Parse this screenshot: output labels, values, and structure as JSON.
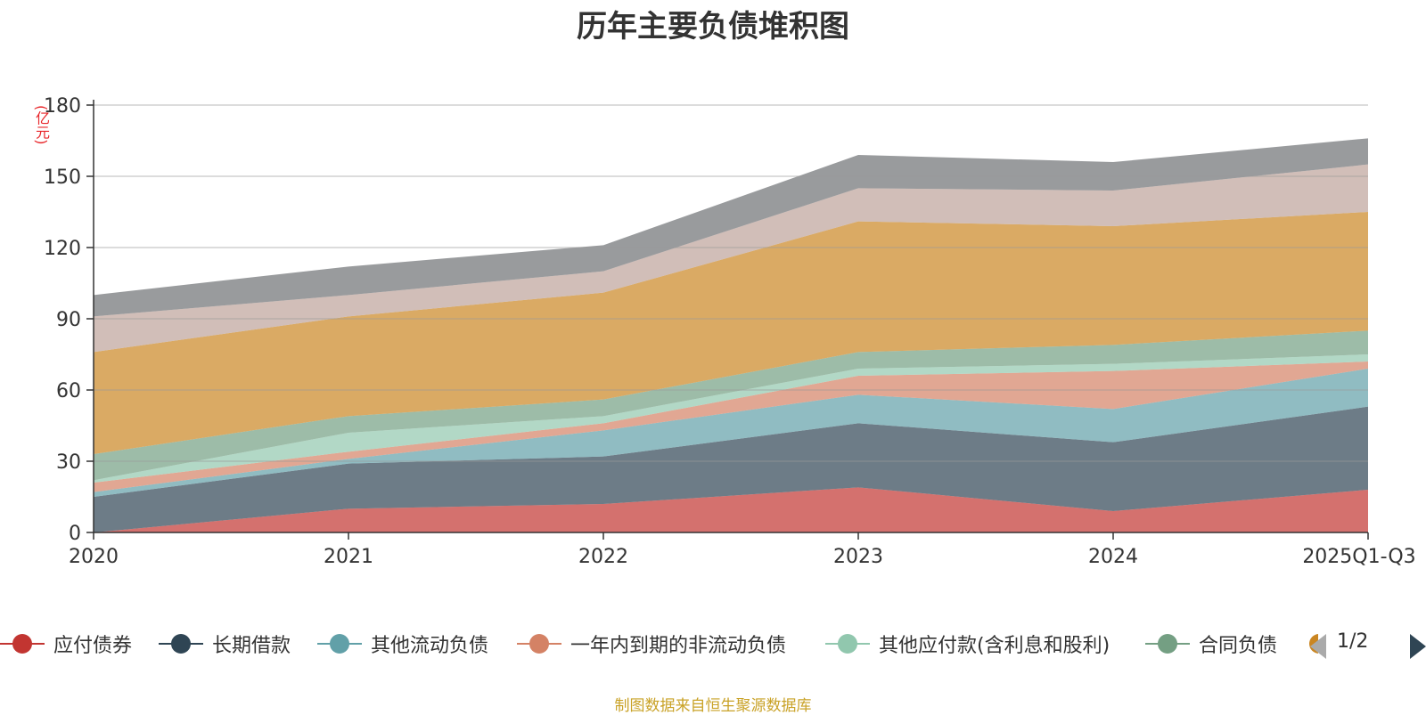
{
  "chart_data": {
    "type": "area",
    "stacked": true,
    "title": "历年主要负债堆积图",
    "ylabel": "(亿元)",
    "xlabel": "",
    "ylim": [
      0,
      180
    ],
    "yticks": [
      0,
      30,
      60,
      90,
      120,
      150,
      180
    ],
    "grid": true,
    "categories": [
      "2020",
      "2021",
      "2022",
      "2023",
      "2024",
      "2025Q1-Q3"
    ],
    "series": [
      {
        "name": "应付债券",
        "color": "#c23531",
        "values": [
          0,
          10,
          12,
          19,
          9,
          18
        ],
        "legend_visible": true
      },
      {
        "name": "长期借款",
        "color": "#2f4554",
        "values": [
          15,
          19,
          20,
          27,
          29,
          35
        ],
        "legend_visible": true
      },
      {
        "name": "其他流动负债",
        "color": "#61a0a8",
        "values": [
          2,
          2,
          11,
          12,
          14,
          16
        ],
        "legend_visible": true
      },
      {
        "name": "一年内到期的非流动负债",
        "color": "#d48265",
        "values": [
          4,
          3,
          3,
          8,
          16,
          3
        ],
        "legend_visible": true
      },
      {
        "name": "其他应付款(含利息和股利)",
        "color": "#91c7ae",
        "values": [
          1,
          8,
          3,
          3,
          3,
          3
        ],
        "legend_visible": true
      },
      {
        "name": "合同负债",
        "color": "#749f83",
        "values": [
          11,
          7,
          7,
          7,
          8,
          10
        ],
        "legend_visible": true
      },
      {
        "name": "",
        "color": "#ca8622",
        "values": [
          43,
          42,
          45,
          55,
          50,
          50
        ],
        "legend_visible": false
      },
      {
        "name": "",
        "color": "#bda29a",
        "values": [
          15,
          9,
          9,
          14,
          15,
          20
        ],
        "legend_visible": false
      },
      {
        "name": "",
        "color": "#6e7074",
        "values": [
          9,
          12,
          11,
          14,
          12,
          11
        ],
        "legend_visible": false
      }
    ]
  },
  "legend": {
    "page": "1/2"
  },
  "source": "制图数据来自恒生聚源数据库"
}
